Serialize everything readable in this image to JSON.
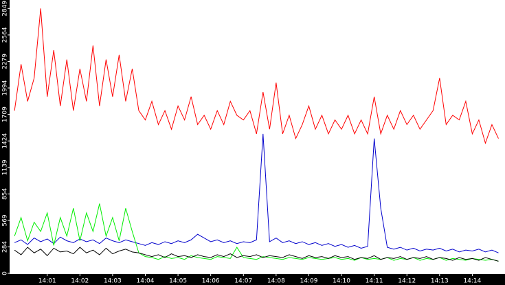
{
  "chart_data": {
    "type": "line",
    "x": [
      0,
      0.2,
      0.4,
      0.6,
      0.8,
      1,
      1.2,
      1.4,
      1.6,
      1.8,
      2,
      2.2,
      2.4,
      2.6,
      2.8,
      3,
      3.2,
      3.4,
      3.6,
      3.8,
      4,
      4.2,
      4.4,
      4.6,
      4.8,
      5,
      5.2,
      5.4,
      5.6,
      5.8,
      6,
      6.2,
      6.4,
      6.6,
      6.8,
      7,
      7.2,
      7.4,
      7.6,
      7.8,
      8,
      8.2,
      8.4,
      8.6,
      8.8,
      9,
      9.2,
      9.4,
      9.6,
      9.8,
      10,
      10.2,
      10.4,
      10.6,
      10.8,
      11,
      11.2,
      11.4,
      11.6,
      11.8,
      12,
      12.2,
      12.4,
      12.6,
      12.8,
      13,
      13.2,
      13.4,
      13.6,
      13.8,
      14,
      14.2,
      14.4,
      14.6,
      14.8
    ],
    "series": [
      {
        "color": "#ff0000",
        "values": [
          1750,
          2250,
          1850,
          2100,
          2849,
          1900,
          2400,
          1800,
          2300,
          1750,
          2200,
          1850,
          2450,
          1800,
          2300,
          1900,
          2350,
          1850,
          2200,
          1750,
          1650,
          1850,
          1600,
          1750,
          1550,
          1800,
          1650,
          1900,
          1600,
          1700,
          1550,
          1750,
          1600,
          1850,
          1700,
          1650,
          1750,
          1500,
          1950,
          1550,
          2050,
          1500,
          1700,
          1450,
          1600,
          1800,
          1550,
          1700,
          1500,
          1650,
          1550,
          1700,
          1500,
          1650,
          1500,
          1900,
          1500,
          1700,
          1550,
          1750,
          1600,
          1700,
          1550,
          1650,
          1750,
          2100,
          1600,
          1700,
          1650,
          1850,
          1500,
          1650,
          1400,
          1600,
          1450
        ]
      },
      {
        "color": "#0000cc",
        "values": [
          330,
          360,
          310,
          380,
          340,
          370,
          320,
          390,
          350,
          330,
          370,
          340,
          360,
          320,
          380,
          350,
          330,
          360,
          340,
          320,
          300,
          330,
          310,
          340,
          320,
          350,
          330,
          360,
          420,
          380,
          340,
          360,
          330,
          350,
          320,
          340,
          330,
          360,
          1500,
          340,
          380,
          330,
          350,
          320,
          340,
          310,
          330,
          300,
          320,
          290,
          310,
          280,
          300,
          270,
          290,
          1450,
          700,
          280,
          260,
          280,
          250,
          270,
          240,
          260,
          250,
          270,
          240,
          260,
          230,
          250,
          240,
          260,
          230,
          250,
          220
        ]
      },
      {
        "color": "#00ee00",
        "values": [
          400,
          600,
          350,
          550,
          450,
          650,
          300,
          600,
          400,
          700,
          350,
          650,
          450,
          750,
          400,
          600,
          350,
          700,
          450,
          220,
          180,
          170,
          150,
          180,
          160,
          170,
          150,
          190,
          170,
          160,
          150,
          180,
          170,
          160,
          280,
          170,
          160,
          150,
          180,
          170,
          160,
          150,
          170,
          160,
          150,
          170,
          160,
          150,
          160,
          170,
          150,
          160,
          140,
          170,
          150,
          160,
          150,
          170,
          140,
          160,
          150,
          170,
          140,
          160,
          150,
          170,
          140,
          160,
          150,
          140,
          160,
          150,
          140,
          150,
          130
        ]
      },
      {
        "color": "#000000",
        "values": [
          250,
          200,
          280,
          220,
          260,
          190,
          270,
          230,
          240,
          210,
          280,
          220,
          250,
          200,
          270,
          210,
          240,
          260,
          230,
          220,
          200,
          180,
          200,
          170,
          210,
          180,
          190,
          170,
          200,
          180,
          170,
          200,
          180,
          210,
          170,
          190,
          180,
          200,
          170,
          190,
          180,
          170,
          200,
          180,
          160,
          190,
          170,
          180,
          160,
          190,
          170,
          180,
          150,
          170,
          160,
          190,
          150,
          170,
          160,
          180,
          150,
          170,
          160,
          180,
          150,
          170,
          160,
          140,
          170,
          150,
          160,
          140,
          170,
          150,
          130
        ]
      }
    ],
    "xlim": [
      -0.15,
      15
    ],
    "xticks": [
      {
        "value": 1,
        "label": "14:01"
      },
      {
        "value": 2,
        "label": "14:02"
      },
      {
        "value": 3,
        "label": "14:03"
      },
      {
        "value": 4,
        "label": "14:04"
      },
      {
        "value": 5,
        "label": "14:05"
      },
      {
        "value": 6,
        "label": "14:06"
      },
      {
        "value": 7,
        "label": "14:07"
      },
      {
        "value": 8,
        "label": "14:08"
      },
      {
        "value": 9,
        "label": "14:09"
      },
      {
        "value": 10,
        "label": "14:10"
      },
      {
        "value": 11,
        "label": "14:11"
      },
      {
        "value": 12,
        "label": "14:12"
      },
      {
        "value": 13,
        "label": "14:13"
      },
      {
        "value": 14,
        "label": "14:14"
      }
    ],
    "ylim": [
      0,
      2940
    ],
    "yticks": [
      0,
      284,
      569,
      854,
      1139,
      1424,
      1709,
      1994,
      2279,
      2564,
      2849
    ],
    "grid": false
  }
}
